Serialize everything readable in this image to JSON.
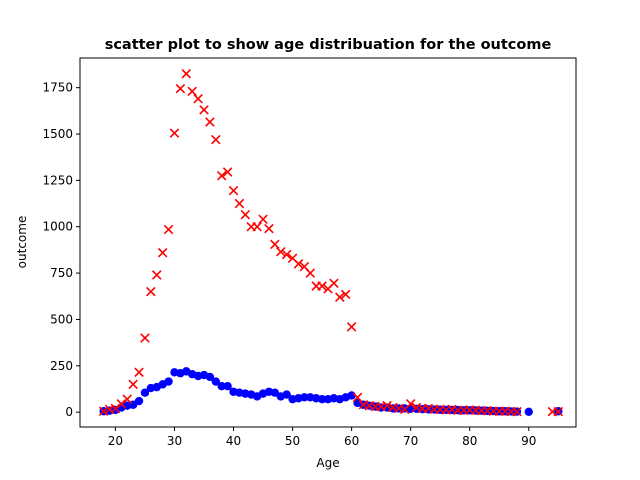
{
  "chart_data": {
    "type": "scatter",
    "title": "scatter plot to show age distribuation for the outcome",
    "xlabel": "Age",
    "ylabel": "outcome",
    "xlim": [
      14,
      98
    ],
    "ylim": [
      -80,
      1910
    ],
    "xticks": [
      20,
      30,
      40,
      50,
      60,
      70,
      80,
      90
    ],
    "yticks": [
      0,
      250,
      500,
      750,
      1000,
      1250,
      1500,
      1750
    ],
    "ytick_labels": [
      "0",
      "250",
      "500",
      "750",
      "1000",
      "1250",
      "1500",
      "1750"
    ],
    "grid": false,
    "legend": "none",
    "series": [
      {
        "color": "#0000ff",
        "marker": "circle",
        "x": [
          18,
          19,
          20,
          21,
          22,
          23,
          24,
          25,
          26,
          27,
          28,
          29,
          30,
          31,
          32,
          33,
          34,
          35,
          36,
          37,
          38,
          39,
          40,
          41,
          42,
          43,
          44,
          45,
          46,
          47,
          48,
          49,
          50,
          51,
          52,
          53,
          54,
          55,
          56,
          57,
          58,
          59,
          60,
          61,
          62,
          63,
          64,
          65,
          66,
          67,
          68,
          69,
          70,
          71,
          72,
          73,
          74,
          75,
          76,
          77,
          78,
          79,
          80,
          81,
          82,
          83,
          84,
          85,
          86,
          87,
          88,
          90,
          95
        ],
        "y": [
          5,
          8,
          12,
          25,
          35,
          40,
          60,
          105,
          130,
          135,
          150,
          165,
          215,
          210,
          220,
          205,
          195,
          200,
          190,
          165,
          140,
          140,
          110,
          105,
          100,
          95,
          85,
          100,
          110,
          105,
          85,
          95,
          70,
          75,
          80,
          80,
          75,
          70,
          70,
          75,
          70,
          80,
          90,
          50,
          40,
          35,
          30,
          25,
          25,
          20,
          20,
          20,
          18,
          18,
          16,
          15,
          14,
          13,
          12,
          12,
          11,
          10,
          10,
          9,
          8,
          7,
          6,
          5,
          5,
          4,
          3,
          2,
          5
        ]
      },
      {
        "color": "#ff0000",
        "marker": "x",
        "x": [
          18,
          19,
          20,
          21,
          22,
          23,
          24,
          25,
          26,
          27,
          28,
          29,
          30,
          31,
          32,
          33,
          34,
          35,
          36,
          37,
          38,
          39,
          40,
          41,
          42,
          43,
          44,
          45,
          46,
          47,
          48,
          49,
          50,
          51,
          52,
          53,
          54,
          55,
          56,
          57,
          58,
          59,
          60,
          61,
          62,
          63,
          64,
          65,
          66,
          67,
          68,
          69,
          70,
          71,
          72,
          73,
          74,
          75,
          76,
          77,
          78,
          79,
          80,
          81,
          82,
          83,
          84,
          85,
          86,
          87,
          88,
          94,
          95
        ],
        "y": [
          5,
          15,
          20,
          45,
          70,
          150,
          215,
          400,
          650,
          740,
          860,
          985,
          1505,
          1745,
          1825,
          1730,
          1690,
          1630,
          1565,
          1470,
          1275,
          1295,
          1195,
          1125,
          1065,
          1000,
          1000,
          1040,
          990,
          905,
          865,
          850,
          830,
          800,
          785,
          750,
          680,
          680,
          665,
          695,
          620,
          635,
          460,
          80,
          40,
          35,
          30,
          30,
          35,
          25,
          20,
          15,
          45,
          25,
          20,
          20,
          15,
          15,
          12,
          15,
          10,
          10,
          12,
          10,
          8,
          8,
          5,
          5,
          5,
          3,
          3,
          3,
          3
        ]
      }
    ]
  }
}
